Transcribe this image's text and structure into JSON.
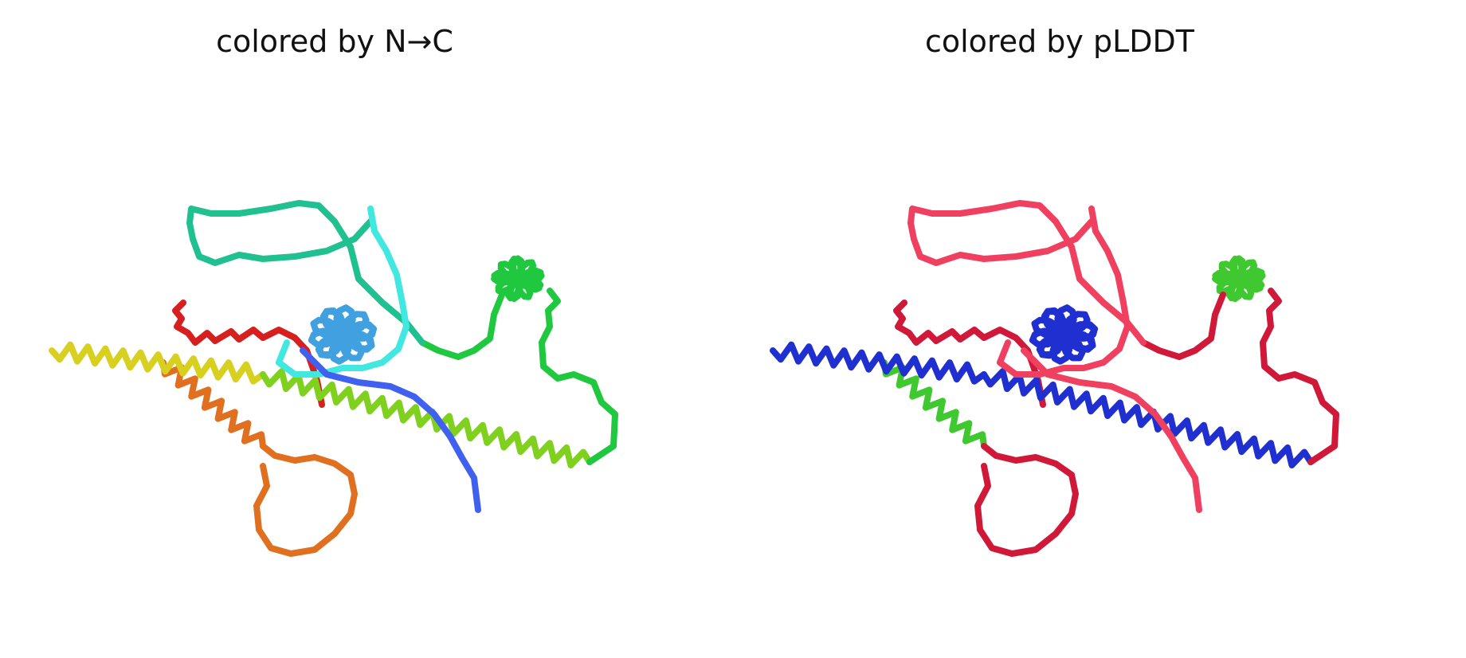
{
  "panels": {
    "left_title": "colored by N→C",
    "right_title": "colored by pLDDT"
  },
  "colors": {
    "n_to_c": [
      "#d62020",
      "#e07020",
      "#d8d020",
      "#80d020",
      "#20c840",
      "#20c090",
      "#40e8e0",
      "#40a0e0",
      "#4060f0"
    ],
    "plddt": [
      "#d01838",
      "#f04060",
      "#e8a020",
      "#c8d820",
      "#40c830",
      "#20c0c0",
      "#2080e0",
      "#2030d0",
      "#3050e8"
    ]
  }
}
